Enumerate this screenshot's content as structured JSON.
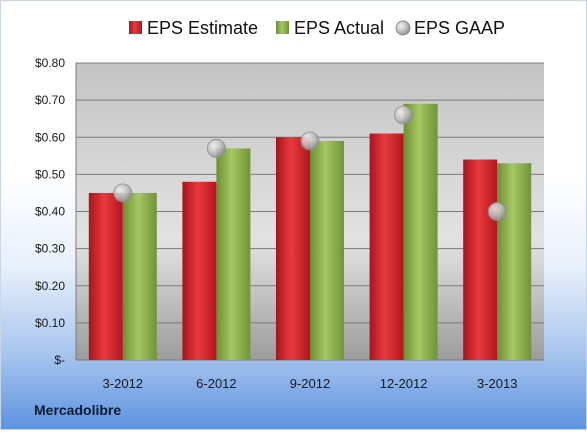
{
  "company_label": "Mercadolibre",
  "chart_data": {
    "type": "bar",
    "title": "",
    "xlabel": "",
    "ylabel": "",
    "categories": [
      "3-2012",
      "6-2012",
      "9-2012",
      "12-2012",
      "3-2013"
    ],
    "series": [
      {
        "name": "EPS Estimate",
        "kind": "bar",
        "color": "#d01e26",
        "values": [
          0.45,
          0.48,
          0.6,
          0.61,
          0.54
        ]
      },
      {
        "name": "EPS Actual",
        "kind": "bar",
        "color": "#8db04a",
        "values": [
          0.45,
          0.57,
          0.59,
          0.69,
          0.53
        ]
      },
      {
        "name": "EPS GAAP",
        "kind": "marker",
        "color": "#b9b9b9",
        "values": [
          0.45,
          0.57,
          0.59,
          0.66,
          0.4
        ]
      }
    ],
    "ylim": [
      0,
      0.8
    ],
    "yticks": [
      0,
      0.1,
      0.2,
      0.3,
      0.4,
      0.5,
      0.6,
      0.7,
      0.8
    ],
    "ytick_labels": [
      "$-",
      "$0.10",
      "$0.20",
      "$0.30",
      "$0.40",
      "$0.50",
      "$0.60",
      "$0.70",
      "$0.80"
    ],
    "grid": true,
    "legend_position": "top"
  }
}
